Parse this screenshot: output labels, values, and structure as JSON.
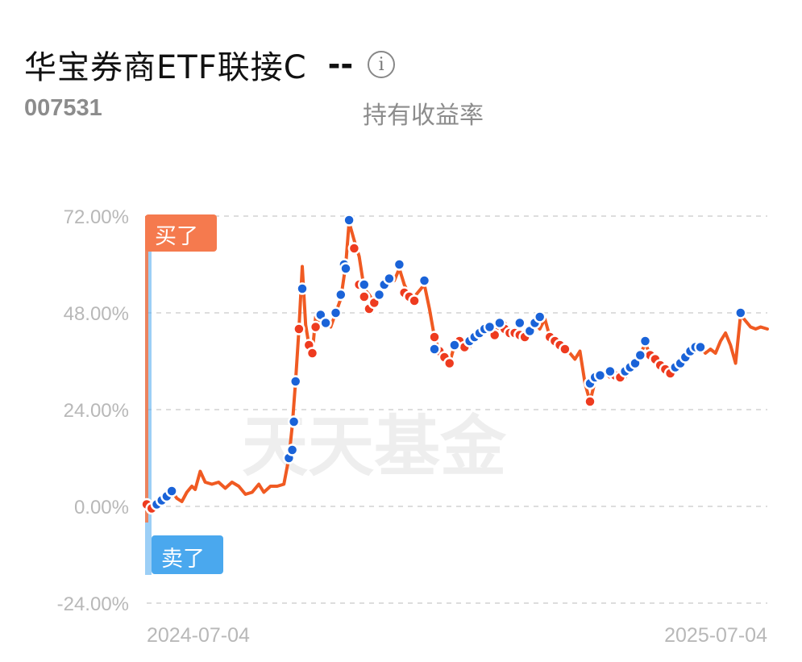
{
  "fund": {
    "name": "华宝券商ETF联接C",
    "return_value": "--",
    "info_icon": "info-icon",
    "code": "007531",
    "return_label": "持有收益率"
  },
  "watermark": "天天基金",
  "colors": {
    "line": "#f05a22",
    "buy": "#ee3b1f",
    "sell": "#1a63d8",
    "buy_tag": "#f57a4e",
    "sell_tag": "#4aa8ee",
    "grid": "#dddddd",
    "axis_text": "#b8b8b8"
  },
  "chart_data": {
    "type": "line",
    "title": "",
    "xlabel": "",
    "ylabel": "",
    "x_range": [
      "2024-07-01",
      "2025-07-07"
    ],
    "ylim": [
      -24,
      72
    ],
    "y_ticks": [
      "72.00%",
      "48.00%",
      "24.00%",
      "0.00%",
      "-24.00%"
    ],
    "x_ticks": [
      "2024-07-04",
      "2025-07-04"
    ],
    "grid": true,
    "series": [
      {
        "values": [
          [
            "2024-07-01",
            0.5
          ],
          [
            "2024-07-04",
            -0.5
          ],
          [
            "2024-07-07",
            1.5
          ],
          [
            "2024-07-10",
            1.2
          ],
          [
            "2024-07-13",
            2.2
          ],
          [
            "2024-07-16",
            3.8
          ],
          [
            "2024-07-19",
            2.0
          ],
          [
            "2024-07-22",
            1.2
          ],
          [
            "2024-07-25",
            3.5
          ],
          [
            "2024-07-28",
            5.0
          ],
          [
            "2024-07-30",
            4.2
          ],
          [
            "2024-08-02",
            8.7
          ],
          [
            "2024-08-05",
            6.0
          ],
          [
            "2024-08-09",
            5.5
          ],
          [
            "2024-08-13",
            6.0
          ],
          [
            "2024-08-17",
            4.5
          ],
          [
            "2024-08-21",
            6.0
          ],
          [
            "2024-08-25",
            5.0
          ],
          [
            "2024-08-29",
            3.0
          ],
          [
            "2024-09-02",
            3.5
          ],
          [
            "2024-09-06",
            5.5
          ],
          [
            "2024-09-09",
            3.5
          ],
          [
            "2024-09-13",
            5.0
          ],
          [
            "2024-09-17",
            5.0
          ],
          [
            "2024-09-21",
            5.5
          ],
          [
            "2024-09-24",
            12.0
          ],
          [
            "2024-09-26",
            20.0
          ],
          [
            "2024-09-28",
            31.0
          ],
          [
            "2024-09-30",
            44.0
          ],
          [
            "2024-10-02",
            59.5
          ],
          [
            "2024-10-04",
            45.0
          ],
          [
            "2024-10-06",
            40.0
          ],
          [
            "2024-10-08",
            38.0
          ],
          [
            "2024-10-10",
            47.0
          ],
          [
            "2024-10-13",
            44.5
          ],
          [
            "2024-10-16",
            46.5
          ],
          [
            "2024-10-19",
            44.5
          ],
          [
            "2024-10-22",
            48.0
          ],
          [
            "2024-10-25",
            51.5
          ],
          [
            "2024-10-28",
            60.0
          ],
          [
            "2024-10-30",
            70.5
          ],
          [
            "2024-11-02",
            66.0
          ],
          [
            "2024-11-05",
            62.0
          ],
          [
            "2024-11-08",
            54.0
          ],
          [
            "2024-11-11",
            52.5
          ],
          [
            "2024-11-14",
            50.5
          ],
          [
            "2024-11-17",
            53.0
          ],
          [
            "2024-11-20",
            55.5
          ],
          [
            "2024-11-23",
            57.5
          ],
          [
            "2024-11-26",
            56.0
          ],
          [
            "2024-11-29",
            59.0
          ],
          [
            "2024-12-02",
            55.0
          ],
          [
            "2024-12-05",
            52.5
          ],
          [
            "2024-12-08",
            52.0
          ],
          [
            "2024-12-11",
            53.5
          ],
          [
            "2024-12-14",
            55.0
          ],
          [
            "2024-12-17",
            49.0
          ],
          [
            "2024-12-20",
            42.0
          ],
          [
            "2024-12-23",
            38.5
          ],
          [
            "2024-12-26",
            37.0
          ],
          [
            "2024-12-29",
            35.5
          ],
          [
            "2025-01-01",
            40.0
          ],
          [
            "2025-01-04",
            41.0
          ],
          [
            "2025-01-07",
            40.5
          ],
          [
            "2025-01-10",
            39.5
          ],
          [
            "2025-01-13",
            41.5
          ],
          [
            "2025-01-16",
            43.0
          ],
          [
            "2025-01-19",
            44.0
          ],
          [
            "2025-01-22",
            43.0
          ],
          [
            "2025-01-25",
            44.5
          ],
          [
            "2025-01-28",
            43.5
          ],
          [
            "2025-01-31",
            45.5
          ],
          [
            "2025-02-03",
            44.0
          ],
          [
            "2025-02-06",
            44.0
          ],
          [
            "2025-02-09",
            43.0
          ],
          [
            "2025-02-12",
            42.5
          ],
          [
            "2025-02-15",
            43.0
          ],
          [
            "2025-02-18",
            45.5
          ],
          [
            "2025-02-21",
            44.0
          ],
          [
            "2025-02-24",
            46.5
          ],
          [
            "2025-02-27",
            42.0
          ],
          [
            "2025-03-02",
            41.0
          ],
          [
            "2025-03-05",
            40.0
          ],
          [
            "2025-03-08",
            39.0
          ],
          [
            "2025-03-11",
            38.0
          ],
          [
            "2025-03-14",
            36.5
          ],
          [
            "2025-03-17",
            38.5
          ],
          [
            "2025-03-20",
            30.5
          ],
          [
            "2025-03-23",
            26.0
          ],
          [
            "2025-03-26",
            31.0
          ],
          [
            "2025-03-29",
            32.5
          ],
          [
            "2025-04-01",
            33.0
          ],
          [
            "2025-04-04",
            32.0
          ],
          [
            "2025-04-07",
            33.5
          ],
          [
            "2025-04-10",
            33.0
          ],
          [
            "2025-04-13",
            32.0
          ],
          [
            "2025-04-16",
            34.0
          ],
          [
            "2025-04-19",
            35.5
          ],
          [
            "2025-04-22",
            37.5
          ],
          [
            "2025-04-25",
            40.5
          ],
          [
            "2025-04-28",
            37.5
          ],
          [
            "2025-05-01",
            36.5
          ],
          [
            "2025-05-04",
            36.0
          ],
          [
            "2025-05-07",
            34.5
          ],
          [
            "2025-05-10",
            33.0
          ],
          [
            "2025-05-13",
            34.5
          ],
          [
            "2025-05-16",
            35.5
          ],
          [
            "2025-05-19",
            37.0
          ],
          [
            "2025-05-22",
            38.5
          ],
          [
            "2025-05-25",
            39.5
          ],
          [
            "2025-05-28",
            39.5
          ],
          [
            "2025-05-31",
            38.0
          ],
          [
            "2025-06-03",
            39.0
          ],
          [
            "2025-06-06",
            38.0
          ],
          [
            "2025-06-09",
            41.0
          ],
          [
            "2025-06-12",
            43.0
          ],
          [
            "2025-06-15",
            40.0
          ],
          [
            "2025-06-18",
            35.5
          ],
          [
            "2025-06-21",
            47.5
          ],
          [
            "2025-06-24",
            46.0
          ],
          [
            "2025-06-27",
            44.5
          ],
          [
            "2025-06-30",
            44.0
          ],
          [
            "2025-07-03",
            44.5
          ],
          [
            "2025-07-07",
            44.0
          ]
        ]
      }
    ],
    "buy_markers": [
      [
        "2024-07-01",
        0.5
      ],
      [
        "2024-07-04",
        -0.5
      ],
      [
        "2024-09-30",
        44.0
      ],
      [
        "2024-10-06",
        40.0
      ],
      [
        "2024-10-08",
        38.0
      ],
      [
        "2024-10-10",
        44.5
      ],
      [
        "2024-11-02",
        64.0
      ],
      [
        "2024-11-05",
        55.0
      ],
      [
        "2024-11-08",
        52.0
      ],
      [
        "2024-11-11",
        49.0
      ],
      [
        "2024-11-14",
        50.5
      ],
      [
        "2024-12-02",
        53.0
      ],
      [
        "2024-12-05",
        52.0
      ],
      [
        "2024-12-08",
        51.0
      ],
      [
        "2024-12-20",
        42.0
      ],
      [
        "2024-12-23",
        38.5
      ],
      [
        "2024-12-26",
        37.0
      ],
      [
        "2024-12-29",
        35.5
      ],
      [
        "2025-01-04",
        41.0
      ],
      [
        "2025-01-07",
        39.5
      ],
      [
        "2025-01-25",
        42.5
      ],
      [
        "2025-01-31",
        44.0
      ],
      [
        "2025-02-03",
        43.0
      ],
      [
        "2025-02-06",
        43.0
      ],
      [
        "2025-02-09",
        42.5
      ],
      [
        "2025-02-12",
        42.0
      ],
      [
        "2025-02-27",
        42.0
      ],
      [
        "2025-03-02",
        41.0
      ],
      [
        "2025-03-05",
        40.0
      ],
      [
        "2025-03-08",
        39.0
      ],
      [
        "2025-03-23",
        26.0
      ],
      [
        "2025-03-29",
        32.5
      ],
      [
        "2025-04-07",
        32.5
      ],
      [
        "2025-04-10",
        32.0
      ],
      [
        "2025-04-28",
        37.5
      ],
      [
        "2025-05-01",
        36.5
      ],
      [
        "2025-05-04",
        35.0
      ],
      [
        "2025-05-07",
        34.0
      ],
      [
        "2025-05-10",
        33.0
      ]
    ],
    "sell_markers": [
      [
        "2024-07-07",
        0.5
      ],
      [
        "2024-07-10",
        1.5
      ],
      [
        "2024-07-13",
        2.5
      ],
      [
        "2024-07-16",
        3.8
      ],
      [
        "2024-09-24",
        12.0
      ],
      [
        "2024-09-26",
        14.0
      ],
      [
        "2024-09-27",
        21.0
      ],
      [
        "2024-09-28",
        31.0
      ],
      [
        "2024-10-02",
        54.0
      ],
      [
        "2024-10-13",
        47.5
      ],
      [
        "2024-10-16",
        45.5
      ],
      [
        "2024-10-22",
        48.0
      ],
      [
        "2024-10-25",
        52.5
      ],
      [
        "2024-10-27",
        60.0
      ],
      [
        "2024-10-28",
        59.0
      ],
      [
        "2024-10-30",
        71.0
      ],
      [
        "2024-11-08",
        55.0
      ],
      [
        "2024-11-17",
        52.5
      ],
      [
        "2024-11-20",
        55.0
      ],
      [
        "2024-11-23",
        56.5
      ],
      [
        "2024-11-29",
        60.0
      ],
      [
        "2024-12-14",
        56.0
      ],
      [
        "2024-12-20",
        39.0
      ],
      [
        "2025-01-01",
        40.0
      ],
      [
        "2025-01-10",
        41.0
      ],
      [
        "2025-01-13",
        42.0
      ],
      [
        "2025-01-16",
        43.0
      ],
      [
        "2025-01-19",
        44.0
      ],
      [
        "2025-01-22",
        44.5
      ],
      [
        "2025-01-28",
        45.5
      ],
      [
        "2025-02-09",
        45.5
      ],
      [
        "2025-02-15",
        43.5
      ],
      [
        "2025-02-18",
        45.5
      ],
      [
        "2025-02-21",
        47.0
      ],
      [
        "2025-03-23",
        30.5
      ],
      [
        "2025-03-26",
        32.0
      ],
      [
        "2025-03-29",
        32.5
      ],
      [
        "2025-04-04",
        33.5
      ],
      [
        "2025-04-13",
        33.5
      ],
      [
        "2025-04-16",
        34.5
      ],
      [
        "2025-04-19",
        35.5
      ],
      [
        "2025-04-22",
        37.5
      ],
      [
        "2025-04-25",
        41.0
      ],
      [
        "2025-05-13",
        34.5
      ],
      [
        "2025-05-16",
        35.5
      ],
      [
        "2025-05-19",
        37.0
      ],
      [
        "2025-05-22",
        38.5
      ],
      [
        "2025-05-25",
        39.5
      ],
      [
        "2025-05-28",
        39.5
      ],
      [
        "2025-06-21",
        48.0
      ]
    ]
  },
  "buy_tag": {
    "label": "买了"
  },
  "sell_tag": {
    "label": "卖了"
  }
}
